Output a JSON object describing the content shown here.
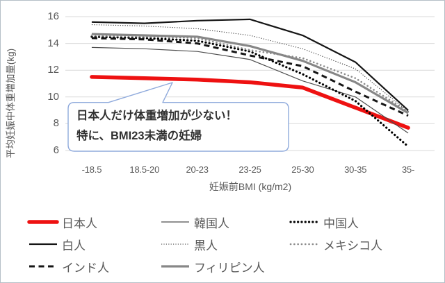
{
  "annotation": {
    "line1": "日本人だけ体重増加が少ない！",
    "line2": "特に、BMI23未満の妊婦"
  },
  "colors": {
    "highlight_red": "#ee1111",
    "gridline": "#d9d9d9",
    "axis_text": "#595959",
    "callout_border": "#8faadc",
    "figure_border": "#b5bfc7"
  },
  "chart_data": {
    "type": "line",
    "title": "",
    "xlabel": "妊娠前BMI (kg/m2)",
    "ylabel": "平均妊娠中体重増加量(kg)",
    "categories": [
      "-18.5",
      "18.5-20",
      "20-23",
      "23-25",
      "25-30",
      "30-35",
      "35-"
    ],
    "y_ticks": [
      16,
      14,
      12,
      10,
      8,
      6
    ],
    "ylim": [
      6,
      16
    ],
    "grid": true,
    "legend_position": "bottom",
    "series": [
      {
        "name": "日本人",
        "color": "#ee1111",
        "width": 5.5,
        "dash": "solid",
        "cap": "round",
        "values": [
          11.5,
          11.4,
          11.3,
          11.1,
          10.7,
          9.2,
          7.7
        ]
      },
      {
        "name": "韓国人",
        "color": "#4d4d4d",
        "width": 1.2,
        "dash": "solid",
        "cap": "butt",
        "values": [
          13.7,
          13.6,
          13.4,
          12.8,
          11.2,
          10.0,
          7.3
        ]
      },
      {
        "name": "中国人",
        "color": "#000000",
        "width": 3.2,
        "dash": "dot",
        "cap": "round",
        "values": [
          14.5,
          14.4,
          14.2,
          13.4,
          11.7,
          9.7,
          6.3
        ]
      },
      {
        "name": "白人",
        "color": "#151515",
        "width": 2.2,
        "dash": "solid",
        "cap": "butt",
        "values": [
          15.6,
          15.5,
          15.7,
          15.8,
          14.6,
          12.6,
          9.0
        ]
      },
      {
        "name": "黒人",
        "color": "#333333",
        "width": 1.1,
        "dash": "fine-dot",
        "cap": "butt",
        "values": [
          15.4,
          15.3,
          15.1,
          14.6,
          13.6,
          12.1,
          8.9
        ]
      },
      {
        "name": "メキシコ人",
        "color": "#8c8c8c",
        "width": 2.6,
        "dash": "dot",
        "cap": "round",
        "values": [
          14.6,
          14.5,
          14.4,
          13.5,
          12.9,
          11.4,
          8.9
        ]
      },
      {
        "name": "インド人",
        "color": "#151515",
        "width": 3.0,
        "dash": "dash",
        "cap": "butt",
        "values": [
          14.4,
          14.3,
          14.0,
          13.1,
          12.3,
          10.4,
          8.6
        ]
      },
      {
        "name": "フィリピン人",
        "color": "#878787",
        "width": 3.2,
        "dash": "solid",
        "cap": "butt",
        "values": [
          14.7,
          14.6,
          14.5,
          13.8,
          12.7,
          11.1,
          8.8
        ]
      }
    ]
  }
}
